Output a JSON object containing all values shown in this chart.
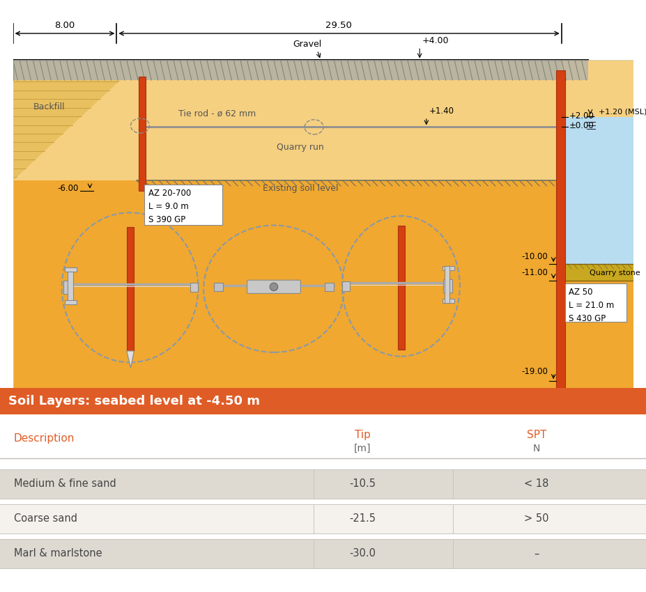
{
  "title": "Soil Layers: seabed level at -4.50 m",
  "title_bg_color": "#E05C26",
  "title_text_color": "#ffffff",
  "header_color": "#E05C26",
  "bg_fill_light": "#F5D080",
  "bg_fill_dark": "#F0A830",
  "bg_water": "#B8DCF0",
  "bg_quarry_stone": "#C8A820",
  "bg_gravel": "#B0A890",
  "sheet_pile_color": "#D44010",
  "sheet_pile_edge": "#A83010",
  "table_row_odd_bg": "#DEDAD2",
  "table_row_even_bg": "#F5F2EE",
  "table_border_color": "#C8C4BC",
  "desc_col_label": "Description",
  "tip_col_label": "Tip",
  "spt_col_label": "SPT",
  "tip_unit": "[m]",
  "spt_unit": "N",
  "rows": [
    {
      "description": "Medium & fine sand",
      "tip": "-10.5",
      "spt": "< 18",
      "bg": "#DEDAD2"
    },
    {
      "description": "Coarse sand",
      "tip": "-21.5",
      "spt": "> 50",
      "bg": "#F5F2EE"
    },
    {
      "description": "Marl & marlstone",
      "tip": "-30.0",
      "spt": "–",
      "bg": "#DEDAD2"
    }
  ],
  "dim_8_00": "8.00",
  "dim_29_50": "29.50",
  "label_gravel": "Gravel",
  "label_tie_rod": "Tie rod - ø 62 mm",
  "label_quarry_run": "Quarry run",
  "label_backfill": "Backfill",
  "label_existing_soil": "Existing soil level",
  "label_quarry_stone": "Quarry stone",
  "label_az20": "AZ 20-700\nL = 9.0 m\nS 390 GP",
  "label_az50": "AZ 50\nL = 21.0 m\nS 430 GP",
  "label_msl": "+1.20 (MSL)",
  "elev_p4": "+4.00",
  "elev_p2": "+2.00",
  "elev_p140": "+1.40",
  "elev_p000": "±0.00",
  "elev_m6": "-6.00",
  "elev_m10": "-10.00",
  "elev_m11": "-11.00",
  "elev_m19": "-19.00"
}
